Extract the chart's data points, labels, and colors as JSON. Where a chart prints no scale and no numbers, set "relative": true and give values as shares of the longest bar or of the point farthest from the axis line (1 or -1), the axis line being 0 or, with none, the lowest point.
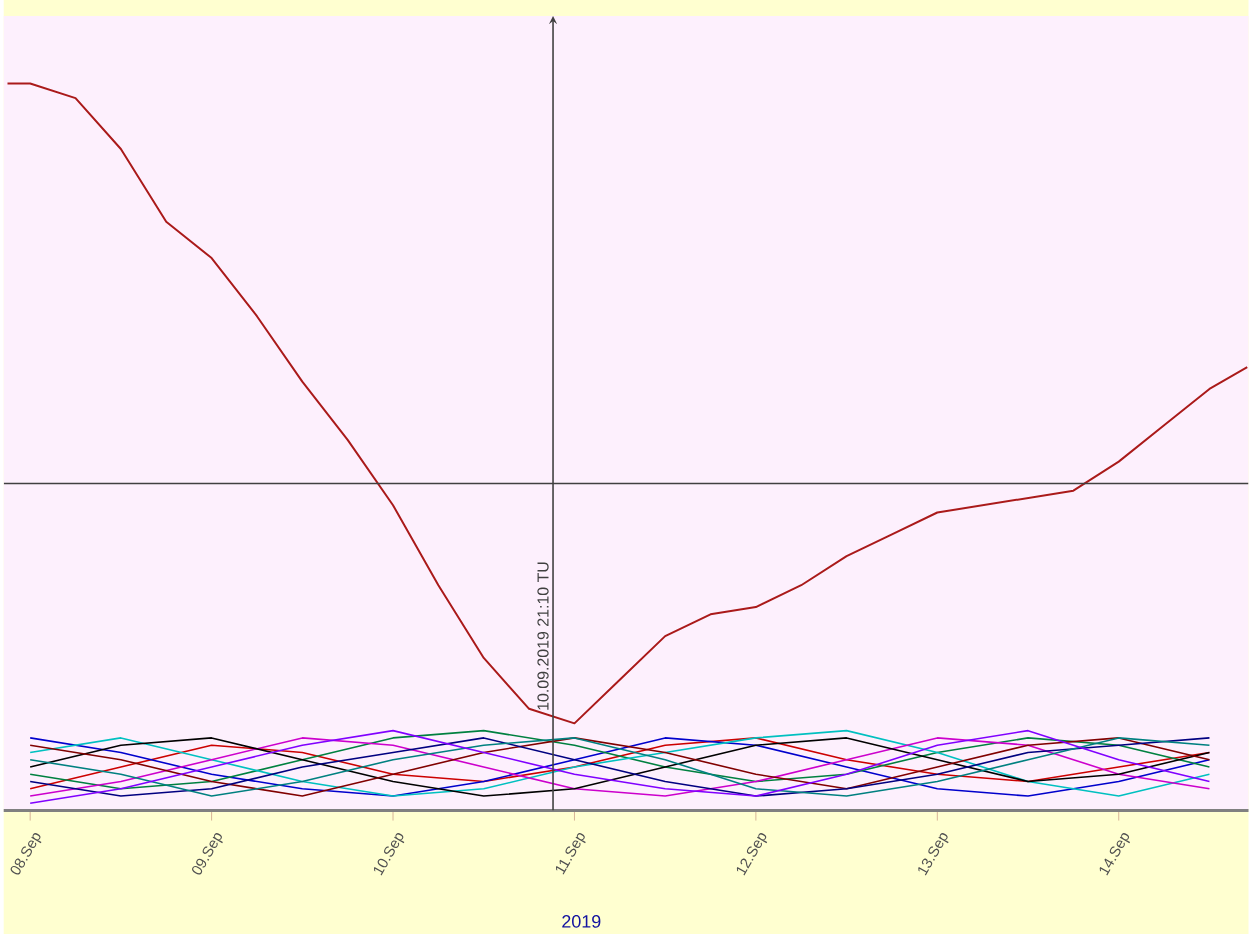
{
  "chart_data": {
    "type": "line",
    "relative": true,
    "xlabel": "2019",
    "xlim": [
      "2019-09-07T20:30",
      "2019-09-14T17:10"
    ],
    "xticks": [
      {
        "value": "2019-09-08",
        "label": "08.Sep"
      },
      {
        "value": "2019-09-09",
        "label": "09.Sep"
      },
      {
        "value": "2019-09-10",
        "label": "10.Sep"
      },
      {
        "value": "2019-09-11",
        "label": "11.Sep"
      },
      {
        "value": "2019-09-12",
        "label": "12.Sep"
      },
      {
        "value": "2019-09-13",
        "label": "13.Sep"
      },
      {
        "value": "2019-09-14",
        "label": "14.Sep"
      }
    ],
    "tick_labels": "x",
    "ref_lines": [
      {
        "axis": "x",
        "value": "2019-09-10T21:10",
        "label": "10.09.2019  21:10 TU",
        "color": "#404040"
      },
      {
        "axis": "y",
        "value": 0.45,
        "color": "#404040"
      }
    ],
    "x": [
      "2019-09-08T00:00",
      "2019-09-08T12:00",
      "2019-09-09T00:00",
      "2019-09-09T12:00",
      "2019-09-10T00:00",
      "2019-09-10T12:00",
      "2019-09-11T00:00",
      "2019-09-11T12:00",
      "2019-09-12T00:00",
      "2019-09-12T12:00",
      "2019-09-13T00:00",
      "2019-09-13T12:00",
      "2019-09-14T00:00",
      "2019-09-14T12:00"
    ],
    "series": [
      {
        "color": "#cc0000",
        "values": [
          0.03,
          0.06,
          0.09,
          0.08,
          0.05,
          0.04,
          0.06,
          0.09,
          0.1,
          0.07,
          0.05,
          0.04,
          0.06,
          0.08
        ]
      },
      {
        "color": "#0000cc",
        "values": [
          0.1,
          0.08,
          0.05,
          0.03,
          0.02,
          0.04,
          0.07,
          0.1,
          0.09,
          0.06,
          0.03,
          0.02,
          0.04,
          0.07
        ]
      },
      {
        "color": "#008040",
        "values": [
          0.05,
          0.03,
          0.04,
          0.07,
          0.1,
          0.11,
          0.09,
          0.06,
          0.04,
          0.05,
          0.08,
          0.1,
          0.09,
          0.06
        ]
      },
      {
        "color": "#00c0c0",
        "values": [
          0.08,
          0.1,
          0.07,
          0.04,
          0.02,
          0.03,
          0.06,
          0.08,
          0.1,
          0.11,
          0.08,
          0.04,
          0.02,
          0.05
        ]
      },
      {
        "color": "#cc00cc",
        "values": [
          0.02,
          0.04,
          0.07,
          0.1,
          0.09,
          0.06,
          0.03,
          0.02,
          0.04,
          0.07,
          0.1,
          0.09,
          0.05,
          0.03
        ]
      },
      {
        "color": "#000000",
        "values": [
          0.06,
          0.09,
          0.1,
          0.07,
          0.04,
          0.02,
          0.03,
          0.06,
          0.09,
          0.1,
          0.07,
          0.04,
          0.05,
          0.08
        ]
      },
      {
        "color": "#800000",
        "values": [
          0.09,
          0.07,
          0.04,
          0.02,
          0.05,
          0.08,
          0.1,
          0.08,
          0.05,
          0.03,
          0.06,
          0.09,
          0.1,
          0.07
        ]
      },
      {
        "color": "#000080",
        "values": [
          0.04,
          0.02,
          0.03,
          0.06,
          0.08,
          0.1,
          0.07,
          0.04,
          0.02,
          0.03,
          0.05,
          0.08,
          0.09,
          0.1
        ]
      },
      {
        "color": "#008080",
        "values": [
          0.07,
          0.05,
          0.02,
          0.04,
          0.07,
          0.09,
          0.1,
          0.07,
          0.03,
          0.02,
          0.04,
          0.07,
          0.1,
          0.09
        ]
      },
      {
        "color": "#8000ff",
        "values": [
          0.01,
          0.03,
          0.06,
          0.09,
          0.11,
          0.08,
          0.05,
          0.03,
          0.02,
          0.05,
          0.09,
          0.11,
          0.07,
          0.04
        ]
      },
      {
        "color": "#aa1a1a",
        "x": [
          "2019-09-07T21:00",
          "2019-09-08T00:00",
          "2019-09-08T06:00",
          "2019-09-08T12:00",
          "2019-09-08T18:00",
          "2019-09-09T00:00",
          "2019-09-09T06:00",
          "2019-09-09T12:00",
          "2019-09-09T18:00",
          "2019-09-10T00:00",
          "2019-09-10T06:00",
          "2019-09-10T12:00",
          "2019-09-10T18:00",
          "2019-09-11T00:00",
          "2019-09-11T06:00",
          "2019-09-11T12:00",
          "2019-09-11T18:00",
          "2019-09-12T00:00",
          "2019-09-12T06:00",
          "2019-09-12T12:00",
          "2019-09-12T18:00",
          "2019-09-13T00:00",
          "2019-09-13T06:00",
          "2019-09-13T12:00",
          "2019-09-13T18:00",
          "2019-09-14T00:00",
          "2019-09-14T06:00",
          "2019-09-14T12:00",
          "2019-09-14T17:00"
        ],
        "values": [
          1.0,
          1.0,
          0.98,
          0.91,
          0.81,
          0.76,
          0.68,
          0.59,
          0.51,
          0.42,
          0.31,
          0.21,
          0.14,
          0.12,
          0.18,
          0.24,
          0.27,
          0.28,
          0.31,
          0.35,
          0.38,
          0.41,
          0.42,
          0.43,
          0.44,
          0.48,
          0.53,
          0.58,
          0.61
        ]
      }
    ]
  }
}
